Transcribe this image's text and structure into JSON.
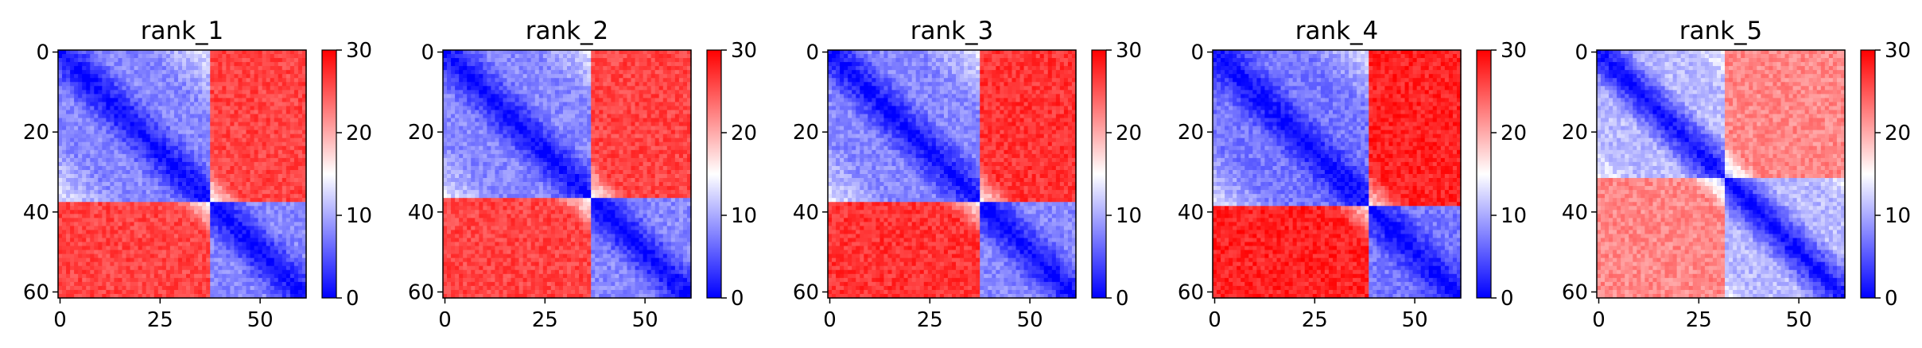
{
  "chart_data": [
    {
      "type": "heatmap",
      "title": "rank_1",
      "matrix_size": 62,
      "xticks": [
        0,
        25,
        50
      ],
      "yticks": [
        0,
        20,
        40,
        60
      ],
      "colorbar": {
        "range": [
          0,
          30
        ],
        "ticks": [
          0,
          10,
          20,
          30
        ],
        "colormap": "bwr"
      },
      "domains": [
        {
          "start": 0,
          "end": 38
        },
        {
          "start": 38,
          "end": 62
        }
      ],
      "description_values": {
        "diagonal": 0,
        "within_domain": 8,
        "between_domain": 26
      }
    },
    {
      "type": "heatmap",
      "title": "rank_2",
      "matrix_size": 62,
      "xticks": [
        0,
        25,
        50
      ],
      "yticks": [
        0,
        20,
        40,
        60
      ],
      "colorbar": {
        "range": [
          0,
          30
        ],
        "ticks": [
          0,
          10,
          20,
          30
        ],
        "colormap": "bwr"
      },
      "domains": [
        {
          "start": 0,
          "end": 37
        },
        {
          "start": 37,
          "end": 62
        }
      ],
      "description_values": {
        "diagonal": 0,
        "within_domain": 8,
        "between_domain": 26
      }
    },
    {
      "type": "heatmap",
      "title": "rank_3",
      "matrix_size": 62,
      "xticks": [
        0,
        25,
        50
      ],
      "yticks": [
        0,
        20,
        40,
        60
      ],
      "colorbar": {
        "range": [
          0,
          30
        ],
        "ticks": [
          0,
          10,
          20,
          30
        ],
        "colormap": "bwr"
      },
      "domains": [
        {
          "start": 0,
          "end": 38
        },
        {
          "start": 38,
          "end": 62
        }
      ],
      "description_values": {
        "diagonal": 0,
        "within_domain": 8,
        "between_domain": 27
      }
    },
    {
      "type": "heatmap",
      "title": "rank_4",
      "matrix_size": 62,
      "xticks": [
        0,
        25,
        50
      ],
      "yticks": [
        0,
        20,
        40,
        60
      ],
      "colorbar": {
        "range": [
          0,
          30
        ],
        "ticks": [
          0,
          10,
          20,
          30
        ],
        "colormap": "bwr"
      },
      "domains": [
        {
          "start": 0,
          "end": 39
        },
        {
          "start": 39,
          "end": 62
        }
      ],
      "description_values": {
        "diagonal": 0,
        "within_domain": 7,
        "between_domain": 28
      }
    },
    {
      "type": "heatmap",
      "title": "rank_5",
      "matrix_size": 62,
      "xticks": [
        0,
        25,
        50
      ],
      "yticks": [
        0,
        20,
        40,
        60
      ],
      "colorbar": {
        "range": [
          0,
          30
        ],
        "ticks": [
          0,
          10,
          20,
          30
        ],
        "colormap": "bwr"
      },
      "domains": [
        {
          "start": 0,
          "end": 32
        },
        {
          "start": 32,
          "end": 62
        }
      ],
      "description_values": {
        "diagonal": 0,
        "within_domain": 11,
        "between_domain": 22
      }
    }
  ]
}
